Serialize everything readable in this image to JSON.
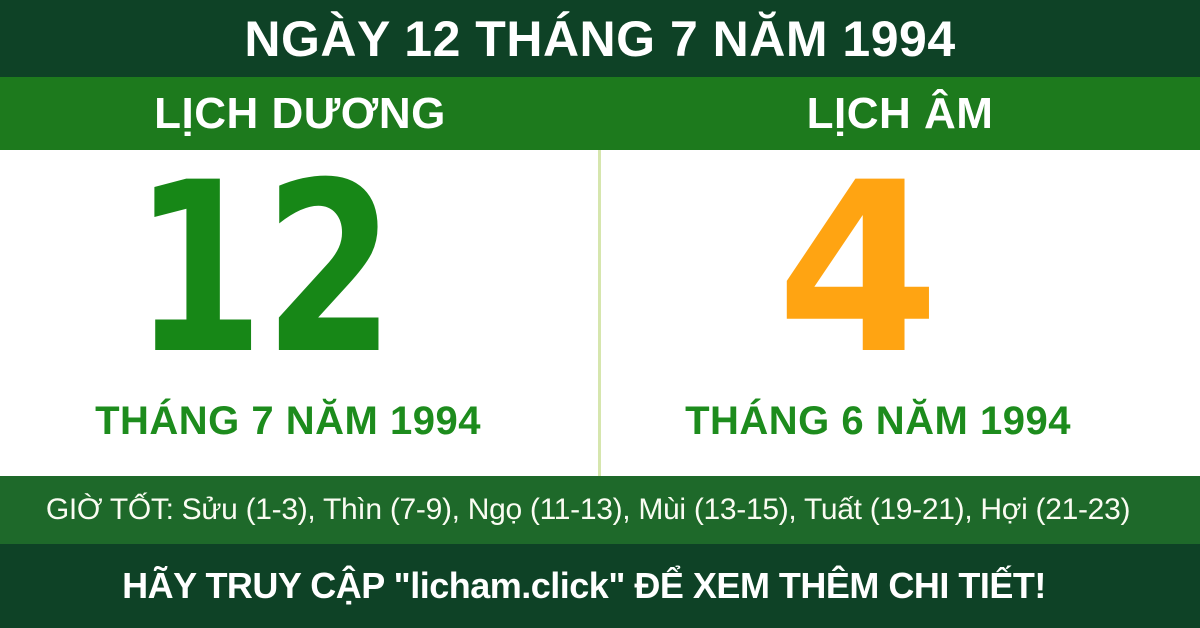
{
  "header": {
    "title": "NGÀY 12 THÁNG 7 NĂM 1994"
  },
  "solar": {
    "label": "LỊCH DƯƠNG",
    "day": "12",
    "month_line": "THÁNG 7 NĂM 1994"
  },
  "lunar": {
    "label": "LỊCH ÂM",
    "day": "4",
    "month_line": "THÁNG 6 NĂM 1994"
  },
  "good_hours": {
    "text": "GIỜ TỐT: Sửu (1-3), Thìn (7-9), Ngọ (11-13), Mùi (13-15), Tuất (19-21), Hợi (21-23)"
  },
  "footer": {
    "text": "HÃY TRUY CẬP \"licham.click\" ĐỂ XEM THÊM CHI TIẾT!"
  },
  "colors": {
    "dark_green_band": "#0e4226",
    "bright_green_band": "#1d7a1d",
    "hours_band_green": "#1e692a",
    "solar_day_green": "#178717",
    "lunar_day_orange": "#ffa412",
    "month_text_green": "#1d8c1d",
    "divider_light_green": "#d6e6ae",
    "panel_white": "#ffffff",
    "text_white": "#ffffff"
  }
}
